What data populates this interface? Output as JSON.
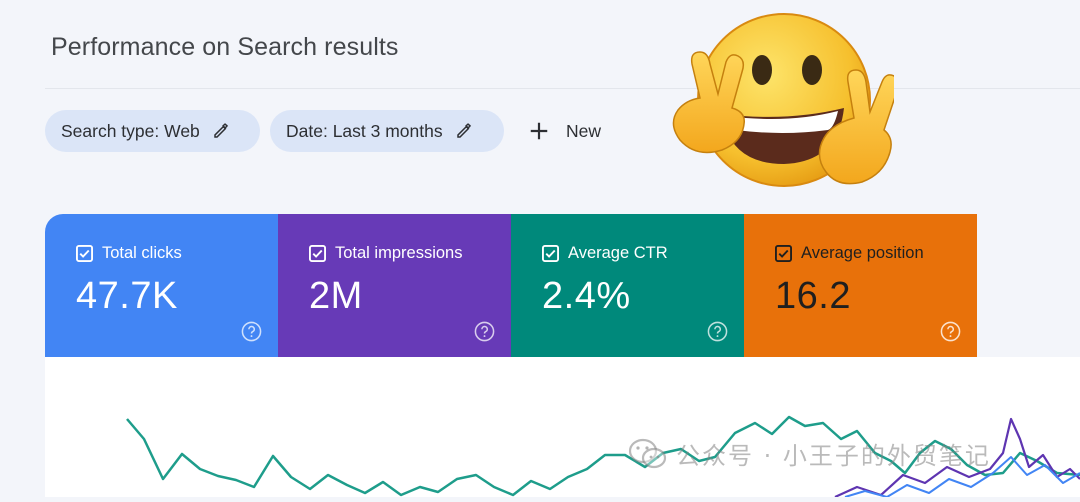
{
  "header": {
    "title": "Performance on Search results"
  },
  "filters": {
    "chips": [
      {
        "label": "Search type: Web"
      },
      {
        "label": "Date: Last 3 months"
      }
    ],
    "new_label": "New"
  },
  "metrics": [
    {
      "label": "Total clicks",
      "value": "47.7K",
      "color": "#4285f4",
      "checked": true
    },
    {
      "label": "Total impressions",
      "value": "2M",
      "color": "#673ab7",
      "checked": true
    },
    {
      "label": "Average CTR",
      "value": "2.4%",
      "color": "#00897b",
      "checked": true
    },
    {
      "label": "Average position",
      "value": "16.2",
      "color": "#e8710a",
      "checked": true
    }
  ],
  "chart": {
    "series_colors": {
      "ctr": "#1e9d8b",
      "impressions": "#5e35b1",
      "clicks": "#4285f4"
    }
  },
  "overlay": {
    "emoji": "grinning-face-victory-hands",
    "watermark": "公众号 · 小王子的外贸笔记"
  }
}
